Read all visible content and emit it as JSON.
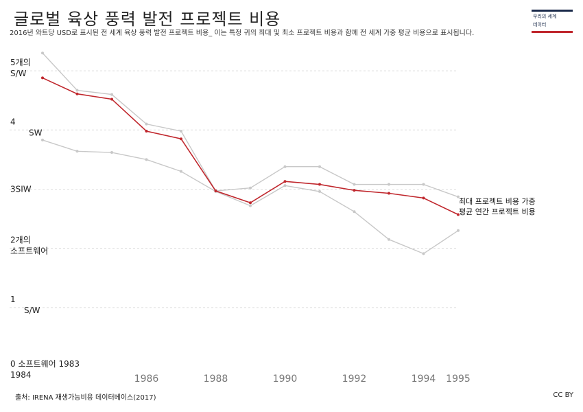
{
  "header": {
    "title": "글로벌 육상 풍력 발전 프로젝트 비용",
    "subtitle": "2016년 와트당 USD로 표시된 전 세계 육상 풍력 발전 프로젝트 비용_ 이는 특정 귀의 최대 및 최소 프로젝트 비용과 함께 전 세계 가중 평균 비용으로 표시됩니다."
  },
  "logo": {
    "line1": "우리의 세계",
    "line2": "데이터"
  },
  "footer": {
    "source": "출처: IRENA 재생가능비용 데이터베이스(2017)",
    "license": "CC BY"
  },
  "chart_data": {
    "type": "line",
    "x": [
      1983,
      1984,
      1985,
      1986,
      1987,
      1988,
      1989,
      1990,
      1991,
      1992,
      1993,
      1994,
      1995
    ],
    "xlim": [
      1983,
      1995
    ],
    "ylim": [
      0,
      5.5
    ],
    "grid": true,
    "y_tick_labels": [
      {
        "value": 0,
        "lines": [
          "0 소프트웨어 1983",
          "1984"
        ]
      },
      {
        "value": 1,
        "lines": [
          "1",
          "S/W"
        ]
      },
      {
        "value": 2,
        "lines": [
          "2개의",
          "소프트웨어"
        ]
      },
      {
        "value": 3,
        "lines": [
          "3SIW"
        ]
      },
      {
        "value": 4,
        "lines": [
          "4",
          "SW"
        ]
      },
      {
        "value": 5,
        "lines": [
          "5개의",
          "S/W"
        ]
      }
    ],
    "x_tick_labels": [
      "1986",
      "1988",
      "1990",
      "1992",
      "1994",
      "1995"
    ],
    "x_tick_values": [
      1986,
      1988,
      1990,
      1992,
      1994,
      1995
    ],
    "series": [
      {
        "role": "max",
        "color": "#c8c8c8",
        "values": [
          5.3,
          4.67,
          4.6,
          4.1,
          3.98,
          2.97,
          3.02,
          3.38,
          3.38,
          3.08,
          3.08,
          3.08,
          2.87
        ]
      },
      {
        "role": "min",
        "color": "#c8c8c8",
        "values": [
          3.83,
          3.64,
          3.62,
          3.5,
          3.3,
          2.96,
          2.72,
          3.06,
          2.96,
          2.62,
          2.15,
          1.91,
          2.3
        ]
      },
      {
        "role": "weighted-average",
        "color": "#c0272d",
        "values": [
          4.88,
          4.61,
          4.52,
          3.98,
          3.85,
          2.97,
          2.77,
          3.13,
          3.08,
          2.98,
          2.93,
          2.85,
          2.57
        ]
      }
    ],
    "annotation": [
      "최대 프로젝트 비용 가중",
      "평균 연간 프로젝트 비용"
    ]
  }
}
